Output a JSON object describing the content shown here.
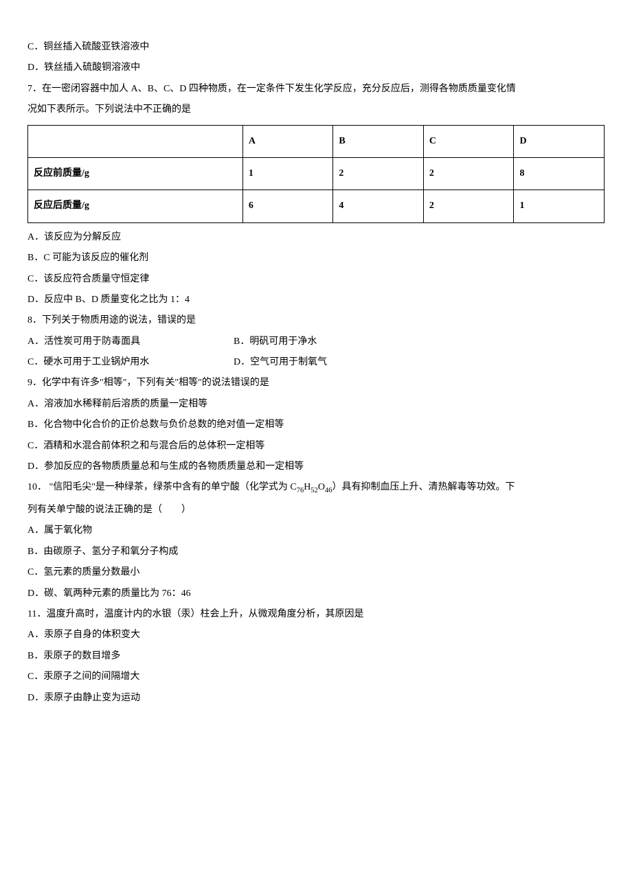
{
  "pre_options": {
    "c": "C．铜丝插入硫酸亚铁溶液中",
    "d": "D．铁丝插入硫酸铜溶液中"
  },
  "q7": {
    "stem_line1": "7．在一密闭容器中加人 A、B、C、D 四种物质，在一定条件下发生化学反应，充分反应后，测得各物质质量变化情",
    "stem_line2": "况如下表所示。下列说法中不正确的是",
    "table": {
      "header": [
        "",
        "A",
        "B",
        "C",
        "D"
      ],
      "row1": [
        "反应前质量/g",
        "1",
        "2",
        "2",
        "8"
      ],
      "row2": [
        "反应后质量/g",
        "6",
        "4",
        "2",
        "1"
      ]
    },
    "options": {
      "a": "A．该反应为分解反应",
      "b": "B．C 可能为该反应的催化剂",
      "c": "C．该反应符合质量守恒定律",
      "d": "D．反应中 B、D 质量变化之比为 1：4"
    }
  },
  "q8": {
    "stem": "8．下列关于物质用途的说法，错误的是",
    "options": {
      "a": "A．活性炭可用于防毒面具",
      "b": "B．明矾可用于净水",
      "c": "C．硬水可用于工业锅炉用水",
      "d": "D．空气可用于制氧气"
    }
  },
  "q9": {
    "stem": "9．化学中有许多\"相等\"，下列有关\"相等\"的说法错误的是",
    "options": {
      "a": "A．溶液加水稀释前后溶质的质量一定相等",
      "b": "B．化合物中化合价的正价总数与负价总数的绝对值一定相等",
      "c": "C．酒精和水混合前体积之和与混合后的总体积一定相等",
      "d": "D．参加反应的各物质质量总和与生成的各物质质量总和一定相等"
    }
  },
  "q10": {
    "stem_part1": "10． \"信阳毛尖\"是一种绿茶，绿茶中含有的单宁酸（化学式为 C",
    "sub1": "76",
    "stem_part2": "H",
    "sub2": "52",
    "stem_part3": "O",
    "sub3": "46",
    "stem_part4": "）具有抑制血压上升、清热解毒等功效。下",
    "stem_line2": "列有关单宁酸的说法正确的是（　　）",
    "options": {
      "a": "A．属于氧化物",
      "b": "B．由碳原子、氢分子和氧分子构成",
      "c": "C．氢元素的质量分数最小",
      "d": "D．碳、氧两种元素的质量比为 76：46"
    }
  },
  "q11": {
    "stem": "11．温度升高时，温度计内的水银（汞）柱会上升，从微观角度分析，其原因是",
    "options": {
      "a": "A．汞原子自身的体积变大",
      "b": "B．汞原子的数目增多",
      "c": "C．汞原子之间的间隔增大",
      "d": "D．汞原子由静止变为运动"
    }
  }
}
